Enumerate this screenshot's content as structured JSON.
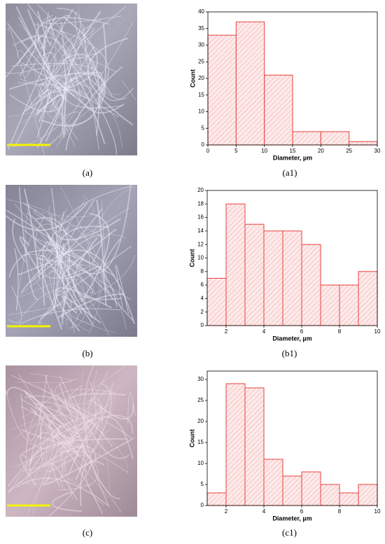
{
  "image_labels": [
    "(a)",
    "(b)",
    "(c)"
  ],
  "chart_data": [
    {
      "type": "histogram",
      "panel_label": "(a1)",
      "xlabel": "Diameter, µm",
      "ylabel": "Count",
      "bins": [
        0,
        5,
        10,
        15,
        20,
        25,
        30
      ],
      "values": [
        33,
        37,
        21,
        4,
        4,
        1
      ],
      "color": "#e8423f",
      "xlim": [
        0,
        30
      ],
      "xticks": [
        0,
        5,
        10,
        15,
        20,
        25,
        30
      ],
      "ylim": [
        0,
        40
      ],
      "yticks": [
        0,
        5,
        10,
        15,
        20,
        25,
        30,
        35,
        40
      ]
    },
    {
      "type": "histogram",
      "panel_label": "(b1)",
      "xlabel": "Diameter, µm",
      "ylabel": "Count",
      "bins": [
        1,
        2,
        3,
        4,
        5,
        6,
        7,
        8,
        9,
        10
      ],
      "values": [
        7,
        18,
        15,
        14,
        14,
        12,
        6,
        6,
        8
      ],
      "color": "#e8423f",
      "xlim": [
        1,
        10
      ],
      "xticks": [
        2,
        4,
        6,
        8,
        10
      ],
      "ylim": [
        0,
        20
      ],
      "yticks": [
        0,
        2,
        4,
        6,
        8,
        10,
        12,
        14,
        16,
        18,
        20
      ]
    },
    {
      "type": "histogram",
      "panel_label": "(c1)",
      "xlabel": "Diameter, µm",
      "ylabel": "Count",
      "bins": [
        1,
        2,
        3,
        4,
        5,
        6,
        7,
        8,
        9,
        10
      ],
      "values": [
        3,
        29,
        28,
        11,
        7,
        8,
        5,
        3,
        5
      ],
      "color": "#e8423f",
      "xlim": [
        1,
        10
      ],
      "xticks": [
        2,
        4,
        6,
        8,
        10
      ],
      "ylim": [
        0,
        32
      ],
      "yticks": [
        0,
        5,
        10,
        15,
        20,
        25,
        30
      ]
    }
  ]
}
